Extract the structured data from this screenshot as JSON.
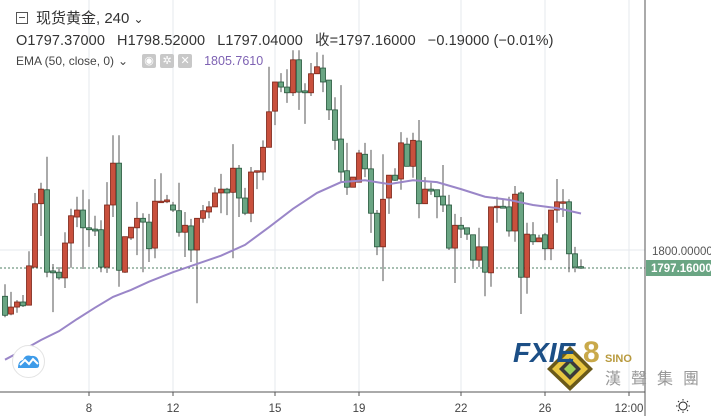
{
  "header": {
    "symbol": "现货黄金, 240",
    "open": "O1797.37000",
    "high": "H1798.52000",
    "low": "L1797.04000",
    "close": "收=1797.16000",
    "change": "−0.19000 (−0.01%)",
    "indicator": "EMA (50, close, 0)",
    "indicator_value": "1805.7610",
    "chevron": "⌄"
  },
  "price_axis": {
    "labels": [
      "1800.000000"
    ],
    "last_price": "1797.16000"
  },
  "time_axis": {
    "labels": [
      "8",
      "12",
      "15",
      "19",
      "22",
      "26",
      "12:00"
    ]
  },
  "watermark": {
    "brand": "FXIE8",
    "sub": "SINO",
    "chinese": "漢聲集團"
  },
  "colors": {
    "up": "#c9503d",
    "down": "#6aa583",
    "ema": "#9a86c8",
    "last_price_bg": "#6aa583"
  },
  "icons": [
    "collapse-icon",
    "chevron-down-icon",
    "eye-icon",
    "gear-icon",
    "close-icon",
    "cloud-logo-icon",
    "sun-icon"
  ],
  "chart_data": {
    "type": "candlestick",
    "title": "现货黄金, 240",
    "ohlc": [
      [
        1792.7,
        1794.6,
        1789.4,
        1789.7
      ],
      [
        1789.9,
        1793.4,
        1789.7,
        1791.0
      ],
      [
        1791.0,
        1792.1,
        1790.1,
        1791.8
      ],
      [
        1791.8,
        1792.9,
        1791.0,
        1791.2
      ],
      [
        1791.3,
        1799.8,
        1791.3,
        1797.5
      ],
      [
        1797.3,
        1809.0,
        1797.3,
        1807.3
      ],
      [
        1807.3,
        1810.6,
        1802.2,
        1809.6
      ],
      [
        1809.5,
        1814.7,
        1795.7,
        1796.5
      ],
      [
        1796.7,
        1797.8,
        1790.2,
        1796.4
      ],
      [
        1796.5,
        1797.3,
        1795.3,
        1795.6
      ],
      [
        1795.6,
        1802.8,
        1794.0,
        1801.1
      ],
      [
        1801.1,
        1806.5,
        1797.2,
        1805.4
      ],
      [
        1805.2,
        1808.4,
        1803.6,
        1806.3
      ],
      [
        1806.3,
        1809.5,
        1797.0,
        1803.5
      ],
      [
        1803.5,
        1808.0,
        1800.5,
        1803.2
      ],
      [
        1803.3,
        1805.4,
        1802.2,
        1803.0
      ],
      [
        1803.2,
        1804.7,
        1796.5,
        1797.3
      ],
      [
        1797.3,
        1810.7,
        1796.4,
        1807.1
      ],
      [
        1807.1,
        1818.1,
        1805.2,
        1813.7
      ],
      [
        1813.7,
        1818.1,
        1794.2,
        1796.8
      ],
      [
        1796.5,
        1802.1,
        1796.4,
        1802.1
      ],
      [
        1801.9,
        1803.6,
        1801.6,
        1803.6
      ],
      [
        1803.5,
        1807.6,
        1799.2,
        1805.0
      ],
      [
        1805.0,
        1805.8,
        1796.5,
        1804.4
      ],
      [
        1804.4,
        1805.7,
        1798.1,
        1800.2
      ],
      [
        1800.3,
        1811.2,
        1798.7,
        1807.7
      ],
      [
        1807.5,
        1812.1,
        1807.5,
        1807.7
      ],
      [
        1807.6,
        1808.7,
        1807.4,
        1807.9
      ],
      [
        1807.1,
        1807.6,
        1806.0,
        1806.3
      ],
      [
        1806.2,
        1810.6,
        1802.1,
        1802.8
      ],
      [
        1802.8,
        1806.0,
        1798.9,
        1803.9
      ],
      [
        1803.8,
        1804.9,
        1798.1,
        1800.0
      ],
      [
        1800.0,
        1805.0,
        1791.6,
        1805.0
      ],
      [
        1805.0,
        1807.1,
        1804.3,
        1806.2
      ],
      [
        1806.0,
        1807.7,
        1805.0,
        1806.8
      ],
      [
        1806.8,
        1809.9,
        1806.8,
        1809.0
      ],
      [
        1809.0,
        1812.0,
        1805.8,
        1809.6
      ],
      [
        1809.6,
        1809.8,
        1805.5,
        1809.0
      ],
      [
        1809.1,
        1816.7,
        1798.7,
        1812.9
      ],
      [
        1812.9,
        1813.4,
        1805.2,
        1808.2
      ],
      [
        1808.2,
        1809.8,
        1805.5,
        1805.8
      ],
      [
        1805.8,
        1813.1,
        1804.4,
        1812.3
      ],
      [
        1812.3,
        1812.5,
        1809.6,
        1812.5
      ],
      [
        1812.3,
        1817.3,
        1811.0,
        1816.2
      ],
      [
        1816.2,
        1828.9,
        1816.2,
        1821.8
      ],
      [
        1821.9,
        1826.5,
        1819.7,
        1826.5
      ],
      [
        1826.5,
        1827.9,
        1824.9,
        1825.7
      ],
      [
        1825.7,
        1828.5,
        1823.2,
        1824.8
      ],
      [
        1824.8,
        1831.5,
        1824.3,
        1830.0
      ],
      [
        1830.0,
        1831.5,
        1822.1,
        1824.9
      ],
      [
        1825.1,
        1826.3,
        1819.9,
        1824.8
      ],
      [
        1824.8,
        1829.5,
        1824.3,
        1827.8
      ],
      [
        1827.8,
        1831.2,
        1827.8,
        1828.9
      ],
      [
        1828.7,
        1830.8,
        1824.9,
        1826.5
      ],
      [
        1826.8,
        1826.8,
        1820.5,
        1822.1
      ],
      [
        1822.1,
        1824.1,
        1815.8,
        1817.3
      ],
      [
        1817.5,
        1826.0,
        1810.6,
        1812.3
      ],
      [
        1812.5,
        1816.9,
        1808.7,
        1809.9
      ],
      [
        1809.9,
        1811.5,
        1809.9,
        1811.5
      ],
      [
        1810.7,
        1815.8,
        1810.7,
        1815.3
      ],
      [
        1815.1,
        1816.9,
        1811.5,
        1812.8
      ],
      [
        1812.8,
        1815.8,
        1802.7,
        1805.8
      ],
      [
        1805.8,
        1806.3,
        1799.2,
        1800.5
      ],
      [
        1800.5,
        1815.1,
        1795.1,
        1808.0
      ],
      [
        1808.2,
        1811.8,
        1805.7,
        1811.8
      ],
      [
        1811.8,
        1812.9,
        1810.9,
        1811.0
      ],
      [
        1811.2,
        1818.6,
        1809.5,
        1816.9
      ],
      [
        1816.7,
        1817.7,
        1813.2,
        1813.2
      ],
      [
        1813.2,
        1818.5,
        1811.4,
        1817.3
      ],
      [
        1817.2,
        1820.5,
        1805.0,
        1807.3
      ],
      [
        1807.3,
        1811.5,
        1807.3,
        1809.6
      ],
      [
        1809.6,
        1810.6,
        1808.7,
        1809.3
      ],
      [
        1809.5,
        1809.5,
        1805.0,
        1808.4
      ],
      [
        1808.5,
        1813.4,
        1806.0,
        1807.1
      ],
      [
        1807.1,
        1808.7,
        1800.0,
        1800.3
      ],
      [
        1800.3,
        1805.7,
        1794.8,
        1803.9
      ],
      [
        1803.9,
        1805.2,
        1801.9,
        1803.3
      ],
      [
        1803.5,
        1803.5,
        1801.6,
        1802.5
      ],
      [
        1802.4,
        1802.4,
        1797.3,
        1798.4
      ],
      [
        1798.4,
        1803.5,
        1797.3,
        1800.5
      ],
      [
        1800.5,
        1800.5,
        1792.7,
        1796.5
      ],
      [
        1796.4,
        1806.8,
        1794.2,
        1806.8
      ],
      [
        1806.8,
        1808.4,
        1804.3,
        1806.9
      ],
      [
        1806.9,
        1808.0,
        1806.6,
        1806.6
      ],
      [
        1806.8,
        1808.4,
        1802.1,
        1803.0
      ],
      [
        1803.0,
        1810.1,
        1801.3,
        1808.8
      ],
      [
        1809.0,
        1809.3,
        1789.9,
        1795.7
      ],
      [
        1795.7,
        1804.3,
        1793.1,
        1802.5
      ],
      [
        1802.4,
        1804.4,
        1800.8,
        1801.3
      ],
      [
        1801.3,
        1802.4,
        1801.3,
        1801.9
      ],
      [
        1802.4,
        1802.7,
        1798.4,
        1800.2
      ],
      [
        1800.2,
        1806.3,
        1798.4,
        1806.3
      ],
      [
        1806.3,
        1811.2,
        1804.3,
        1807.6
      ],
      [
        1807.4,
        1809.6,
        1805.2,
        1807.6
      ],
      [
        1807.6,
        1808.0,
        1796.5,
        1799.4
      ],
      [
        1799.4,
        1800.5,
        1796.5,
        1797.3
      ],
      [
        1797.37,
        1798.52,
        1797.04,
        1797.16
      ]
    ],
    "ema": {
      "name": "EMA (50, close, 0)",
      "points": [
        [
          0,
          1782.7
        ],
        [
          3,
          1784.2
        ],
        [
          6,
          1785.8
        ],
        [
          9,
          1787.2
        ],
        [
          12,
          1789.1
        ],
        [
          15,
          1790.9
        ],
        [
          18,
          1792.6
        ],
        [
          21,
          1793.7
        ],
        [
          24,
          1795.0
        ],
        [
          28,
          1796.5
        ],
        [
          32,
          1797.8
        ],
        [
          36,
          1799.1
        ],
        [
          40,
          1800.8
        ],
        [
          44,
          1803.6
        ],
        [
          48,
          1806.5
        ],
        [
          52,
          1809.0
        ],
        [
          56,
          1810.7
        ],
        [
          60,
          1811.0
        ],
        [
          64,
          1810.4
        ],
        [
          68,
          1811.0
        ],
        [
          72,
          1810.7
        ],
        [
          76,
          1809.6
        ],
        [
          80,
          1808.4
        ],
        [
          84,
          1807.9
        ],
        [
          88,
          1807.1
        ],
        [
          92,
          1806.6
        ],
        [
          96,
          1805.76
        ]
      ]
    },
    "x_ticks": [
      {
        "label": "8",
        "index": 14
      },
      {
        "label": "12",
        "index": 28
      },
      {
        "label": "15",
        "index": 45
      },
      {
        "label": "19",
        "index": 59
      },
      {
        "label": "22",
        "index": 76
      },
      {
        "label": "26",
        "index": 90
      },
      {
        "label": "12:00",
        "index": 104
      }
    ],
    "y_ticks": [
      1800
    ],
    "last_price": 1797.16,
    "grid": true
  }
}
